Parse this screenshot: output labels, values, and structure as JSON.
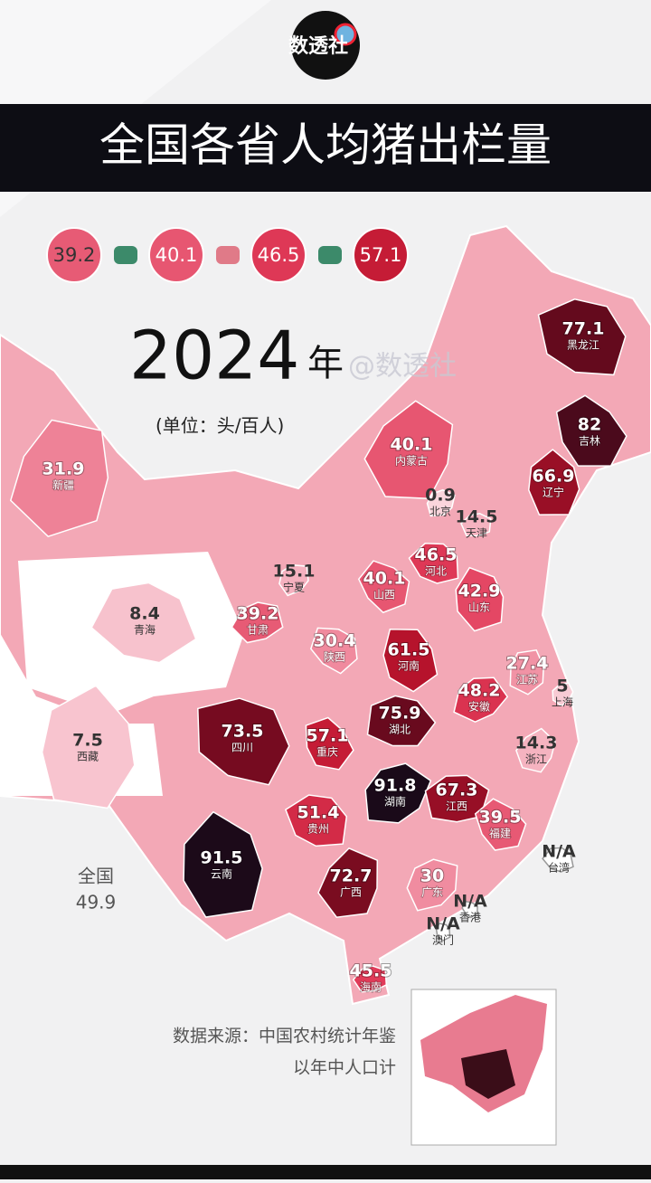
{
  "chart_data": {
    "type": "map",
    "logo": "数透社",
    "title": "全国各省人均猪出栏量",
    "legend": [
      39.2,
      40.1,
      46.5,
      57.1
    ],
    "year": "2024",
    "year_unit": "年",
    "watermark": "@数透社",
    "unit": "(单位：头/百人)",
    "categories": [
      "黑龙江",
      "吉林",
      "辽宁",
      "内蒙古",
      "北京",
      "天津",
      "河北",
      "山西",
      "山东",
      "新疆",
      "宁夏",
      "甘肃",
      "青海",
      "陕西",
      "河南",
      "江苏",
      "上海",
      "安徽",
      "湖北",
      "四川",
      "重庆",
      "西藏",
      "浙江",
      "湖南",
      "江西",
      "贵州",
      "福建",
      "云南",
      "广西",
      "广东",
      "海南",
      "台湾",
      "香港",
      "澳门"
    ],
    "values": [
      77.1,
      82,
      66.9,
      40.1,
      0.9,
      14.5,
      46.5,
      40.1,
      42.9,
      31.9,
      15.1,
      39.2,
      8.4,
      30.4,
      61.5,
      27.4,
      5,
      48.2,
      75.9,
      73.5,
      57.1,
      7.5,
      14.3,
      91.8,
      67.3,
      51.4,
      39.5,
      91.5,
      72.7,
      30,
      45.5,
      null,
      null,
      null
    ],
    "value_labels": [
      null,
      null,
      null,
      null,
      null,
      null,
      null,
      null,
      null,
      null,
      null,
      null,
      null,
      null,
      null,
      null,
      null,
      null,
      null,
      null,
      null,
      null,
      null,
      null,
      null,
      null,
      null,
      null,
      null,
      null,
      null,
      "N/A",
      "N/A",
      "N/A"
    ],
    "national_label": "全国",
    "national_value": 49.9,
    "source": "数据来源：中国农村统计年鉴",
    "note": "以年中人口计"
  }
}
